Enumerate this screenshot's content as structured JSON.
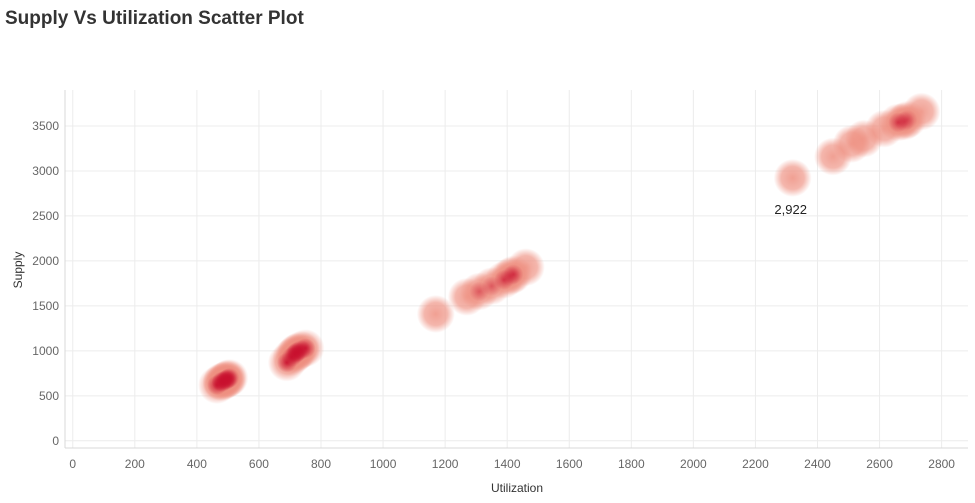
{
  "title": "Supply Vs Utilization Scatter Plot",
  "colors": {
    "point": "#ee8f80",
    "dense": "#c8102e",
    "grid": "#ececec",
    "axis": "#d8d8d8"
  },
  "chart_data": {
    "type": "scatter",
    "title": "Supply Vs Utilization Scatter Plot",
    "xlabel": "Utilization",
    "ylabel": "Supply",
    "xlim": [
      -25,
      2885
    ],
    "ylim": [
      -80,
      3900
    ],
    "xticks": [
      0,
      200,
      400,
      600,
      800,
      1000,
      1200,
      1400,
      1600,
      1800,
      2000,
      2200,
      2400,
      2600,
      2800
    ],
    "yticks": [
      0,
      500,
      1000,
      1500,
      2000,
      2500,
      3000,
      3500
    ],
    "grid": true,
    "points": [
      {
        "x": 465,
        "y": 620
      },
      {
        "x": 480,
        "y": 650
      },
      {
        "x": 490,
        "y": 670
      },
      {
        "x": 500,
        "y": 690
      },
      {
        "x": 505,
        "y": 700
      },
      {
        "x": 480,
        "y": 660
      },
      {
        "x": 495,
        "y": 680
      },
      {
        "x": 690,
        "y": 870
      },
      {
        "x": 705,
        "y": 930
      },
      {
        "x": 715,
        "y": 960
      },
      {
        "x": 725,
        "y": 990
      },
      {
        "x": 735,
        "y": 1010
      },
      {
        "x": 750,
        "y": 1030
      },
      {
        "x": 720,
        "y": 980
      },
      {
        "x": 1170,
        "y": 1410
      },
      {
        "x": 1270,
        "y": 1600
      },
      {
        "x": 1310,
        "y": 1660
      },
      {
        "x": 1350,
        "y": 1720
      },
      {
        "x": 1390,
        "y": 1790
      },
      {
        "x": 1420,
        "y": 1850
      },
      {
        "x": 1460,
        "y": 1930
      },
      {
        "x": 1410,
        "y": 1830
      },
      {
        "x": 2320,
        "y": 2922
      },
      {
        "x": 2450,
        "y": 3160
      },
      {
        "x": 2510,
        "y": 3300
      },
      {
        "x": 2550,
        "y": 3360
      },
      {
        "x": 2615,
        "y": 3470
      },
      {
        "x": 2660,
        "y": 3540
      },
      {
        "x": 2690,
        "y": 3570
      },
      {
        "x": 2735,
        "y": 3660
      },
      {
        "x": 2680,
        "y": 3550
      }
    ],
    "annotations": [
      {
        "x": 2320,
        "y": 2922,
        "text": "2,922"
      }
    ]
  }
}
